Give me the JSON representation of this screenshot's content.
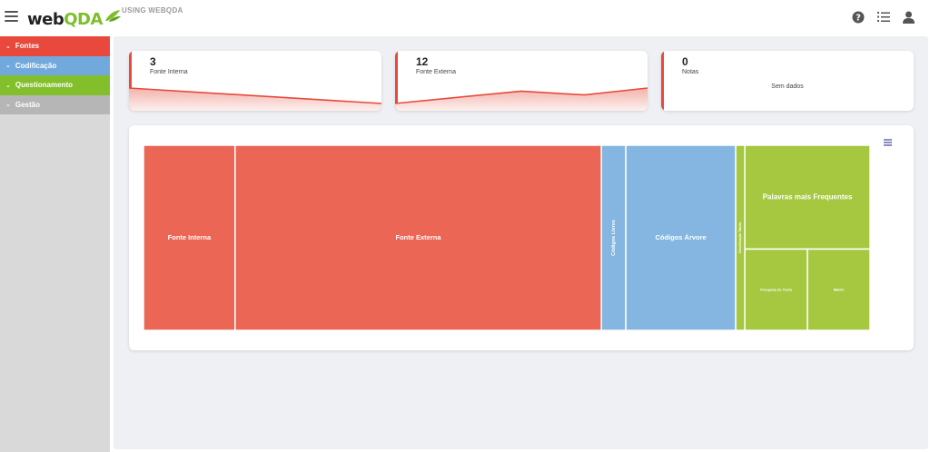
{
  "header": {
    "logo_text_web": "web",
    "logo_text_qda": "QDA",
    "title": "USING WEBQDA",
    "icons": [
      "help-icon",
      "list-icon",
      "user-icon"
    ]
  },
  "sidebar": {
    "items": [
      {
        "label": "Fontes",
        "color": "#e8493c"
      },
      {
        "label": "Codificação",
        "color": "#72a9dd"
      },
      {
        "label": "Questionamento",
        "color": "#82bf2a"
      },
      {
        "label": "Gestão",
        "color": "#b6b6b6"
      }
    ]
  },
  "stats": [
    {
      "value": "3",
      "label": "Fonte Interna",
      "sparkline": [
        1.0,
        0.0
      ]
    },
    {
      "value": "12",
      "label": "Fonte Externa",
      "sparkline": [
        0.0,
        0.4,
        0.8,
        0.55,
        1.0
      ]
    },
    {
      "value": "0",
      "label": "Notas",
      "empty_text": "Sem dados"
    }
  ],
  "chart_data": {
    "type": "treemap",
    "title": "",
    "groups": [
      {
        "name": "Fontes",
        "color": "#ec6656",
        "items": [
          {
            "label": "Fonte Interna",
            "value": 3
          },
          {
            "label": "Fonte Externa",
            "value": 12
          }
        ]
      },
      {
        "name": "Codificação",
        "color": "#85b6e2",
        "items": [
          {
            "label": "Códigos Livres",
            "value": 0.8
          },
          {
            "label": "Códigos Árvore",
            "value": 3.6
          }
        ]
      },
      {
        "name": "Questionamento",
        "color": "#a5c840",
        "items": [
          {
            "label": "Classificação Tabela",
            "value": 0.3
          },
          {
            "label": "Palavras mais Frequentes",
            "value": 2.3
          },
          {
            "label": "Pesquisa de Texto",
            "value": 0.9
          },
          {
            "label": "Matriz",
            "value": 0.9
          }
        ]
      }
    ]
  }
}
